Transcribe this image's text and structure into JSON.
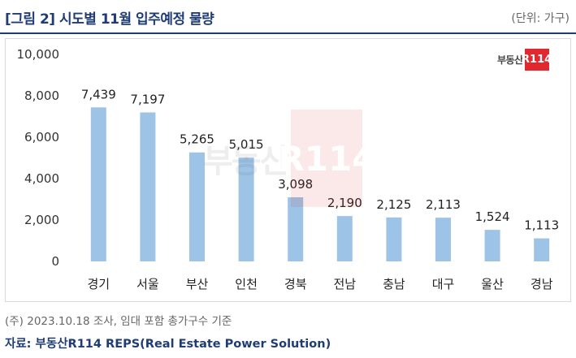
{
  "header": {
    "title": "[그림 2] 시도별 11월 입주예정 물량",
    "unit": "(단위: 가구)"
  },
  "logo": {
    "text": "부동산",
    "box": "R114"
  },
  "footer": {
    "note": "(주) 2023.10.18 조사, 임대 포함 총가구수 기준",
    "source": "자료: 부동산R114 REPS(Real Estate Power Solution)"
  },
  "colors": {
    "bar": "#9dc3e6",
    "title": "#1f3c74",
    "logo_red": "#e0282e"
  },
  "chart_data": {
    "type": "bar",
    "categories": [
      "경기",
      "서울",
      "부산",
      "인천",
      "경북",
      "전남",
      "충남",
      "대구",
      "울산",
      "경남"
    ],
    "values": [
      7439,
      7197,
      5265,
      5015,
      3098,
      2190,
      2125,
      2113,
      1524,
      1113
    ],
    "value_labels": [
      "7,439",
      "7,197",
      "5,265",
      "5,015",
      "3,098",
      "2,190",
      "2,125",
      "2,113",
      "1,524",
      "1,113"
    ],
    "ylim": [
      0,
      10000
    ],
    "yticks": [
      0,
      2000,
      4000,
      6000,
      8000,
      10000
    ],
    "ytick_labels": [
      "0",
      "2,000",
      "4,000",
      "6,000",
      "8,000",
      "10,000"
    ],
    "grid": false,
    "legend": "none"
  }
}
